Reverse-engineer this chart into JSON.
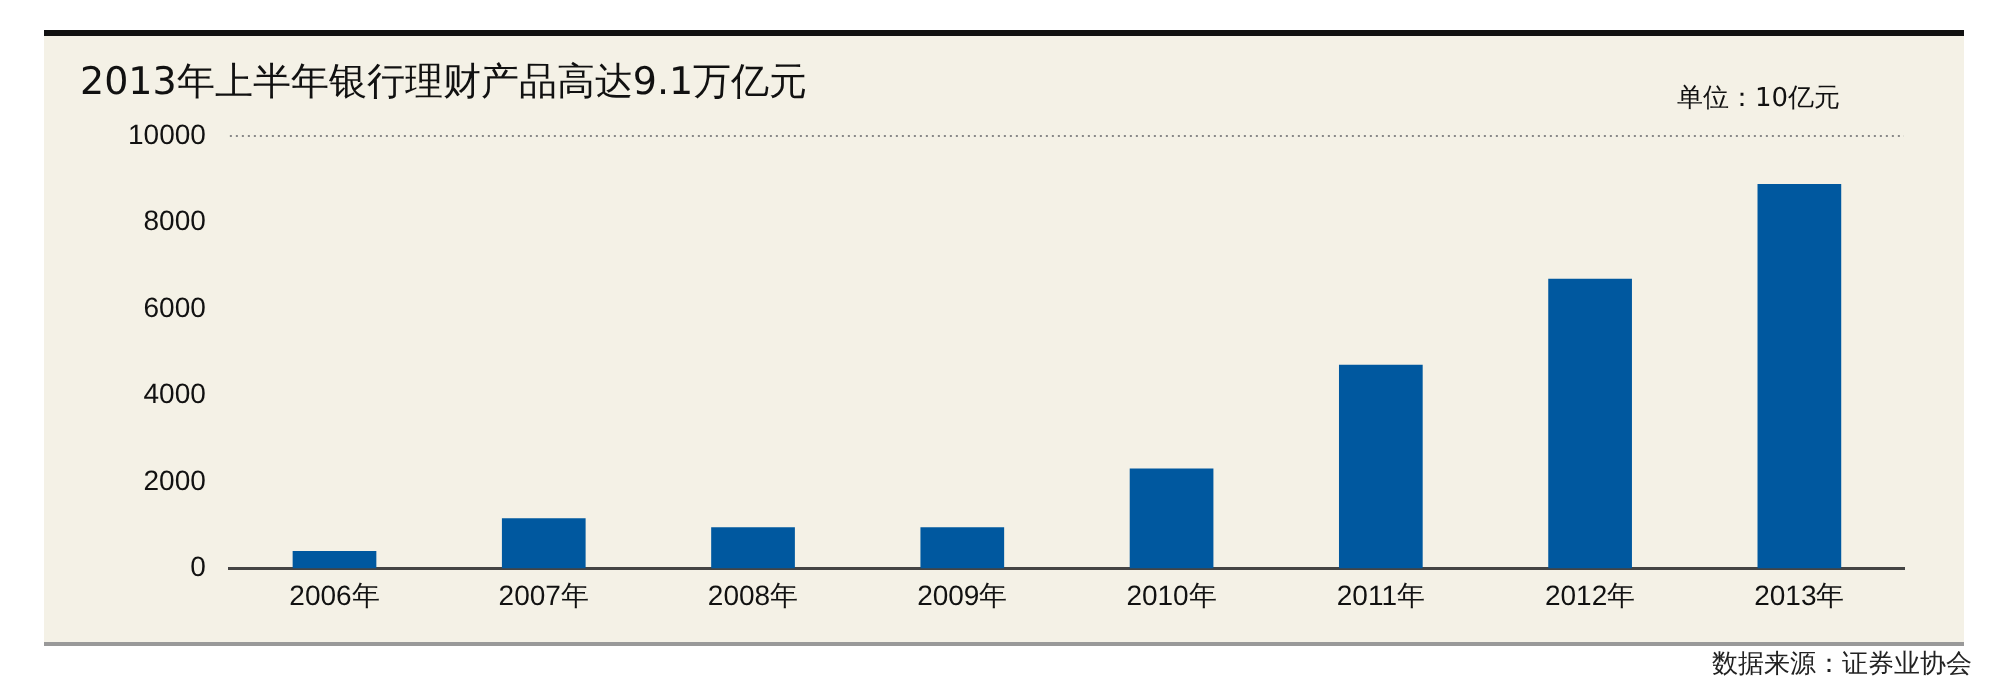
{
  "chart_data": {
    "type": "bar",
    "title": "2013年上半年银行理财产品高达9.1万亿元",
    "categories": [
      "2006年",
      "2007年",
      "2008年",
      "2009年",
      "2010年",
      "2011年",
      "2012年",
      "2013年"
    ],
    "values": [
      400,
      1160,
      950,
      950,
      2310,
      4710,
      6700,
      8890
    ],
    "color": "#00589f",
    "ylim": [
      0,
      10000
    ],
    "yticks": [
      0,
      2000,
      4000,
      6000,
      8000,
      10000
    ],
    "grid": false,
    "ref_lines": [
      {
        "axis": "y",
        "value": 10000,
        "line_style": "dotted",
        "color": "#888888"
      }
    ],
    "annotations": [
      "单位：10亿元",
      "数据来源：证券业协会"
    ]
  }
}
